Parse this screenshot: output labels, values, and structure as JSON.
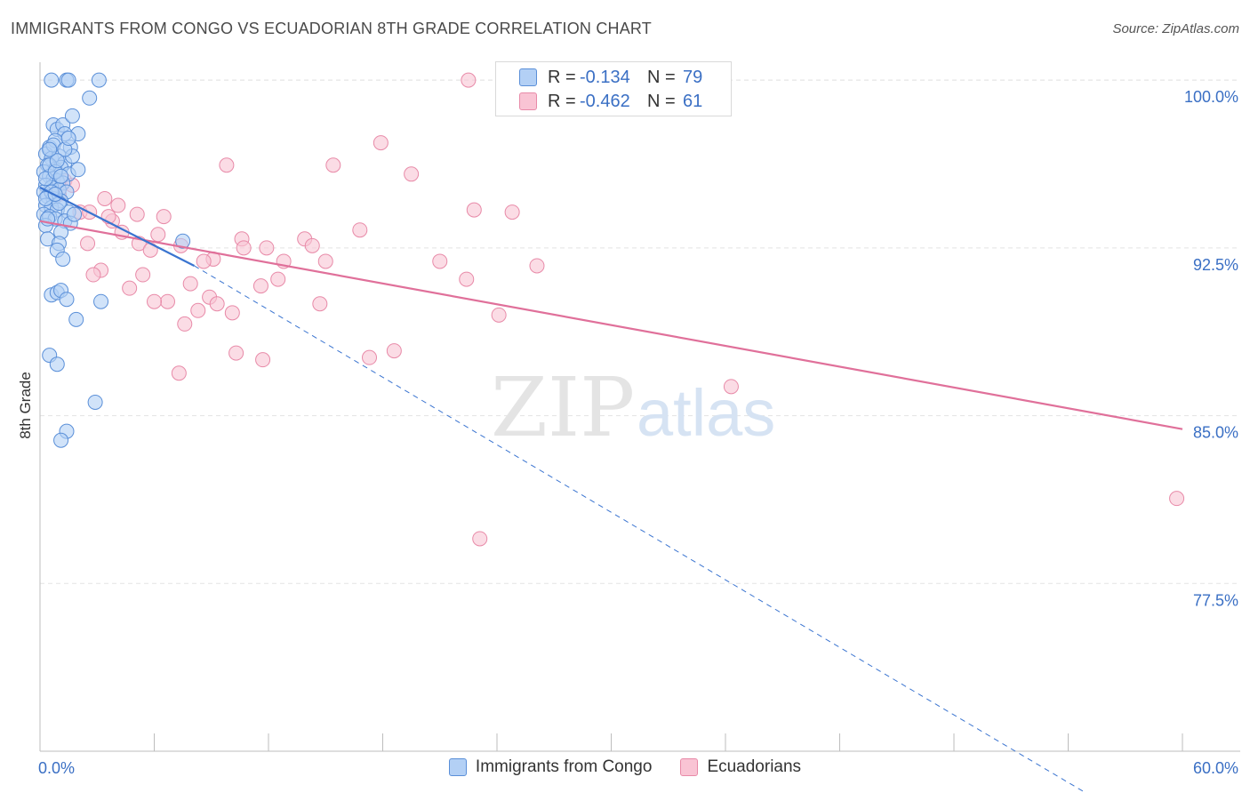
{
  "header": {
    "title": "IMMIGRANTS FROM CONGO VS ECUADORIAN 8TH GRADE CORRELATION CHART",
    "source": "Source: ZipAtlas.com"
  },
  "legend_stats": [
    {
      "r_label": "R =",
      "r_value": "-0.134",
      "n_label": "N =",
      "n_value": "79"
    },
    {
      "r_label": "R =",
      "r_value": "-0.462",
      "n_label": "N =",
      "n_value": "61"
    }
  ],
  "watermark": {
    "zip": "ZIP",
    "atlas": "atlas"
  },
  "colors": {
    "congo_fill": "#b3d0f5",
    "congo_stroke": "#5a8fd8",
    "congo_line": "#3a74d0",
    "ecu_fill": "#f9c4d4",
    "ecu_stroke": "#e88aa8",
    "ecu_line": "#e0709a",
    "tick_label": "#3a6fc4",
    "grid": "#e3e3e3"
  },
  "chart_data": {
    "type": "scatter",
    "title": "IMMIGRANTS FROM CONGO VS ECUADORIAN 8TH GRADE CORRELATION CHART",
    "ylabel": "8th Grade",
    "xlabel": "",
    "xlim": [
      0,
      60
    ],
    "ylim": [
      70.0,
      100.8
    ],
    "x_tick_labels": [
      "0.0%",
      "60.0%"
    ],
    "y_ticks": [
      100.0,
      92.5,
      85.0,
      77.5
    ],
    "y_tick_labels": [
      "100.0%",
      "92.5%",
      "85.0%",
      "77.5%"
    ],
    "grid": true,
    "legend_position": "bottom",
    "series": [
      {
        "name": "Immigrants from Congo",
        "r": -0.134,
        "n": 79,
        "trend": {
          "x0": 0.0,
          "y0": 95.2,
          "x1": 8.1,
          "y1": 91.7,
          "dash_to_x": 55.0,
          "dash_to_y": 68.1
        },
        "points": [
          [
            0.6,
            100.0
          ],
          [
            1.4,
            100.0
          ],
          [
            1.5,
            100.0
          ],
          [
            3.1,
            100.0
          ],
          [
            2.6,
            99.2
          ],
          [
            0.7,
            98.0
          ],
          [
            0.9,
            97.8
          ],
          [
            1.2,
            98.0
          ],
          [
            1.3,
            97.6
          ],
          [
            1.7,
            98.4
          ],
          [
            0.5,
            97.0
          ],
          [
            0.8,
            97.3
          ],
          [
            1.6,
            97.0
          ],
          [
            2.0,
            97.6
          ],
          [
            0.3,
            96.7
          ],
          [
            0.6,
            96.5
          ],
          [
            1.0,
            96.6
          ],
          [
            1.3,
            96.3
          ],
          [
            1.7,
            96.6
          ],
          [
            0.4,
            96.2
          ],
          [
            0.8,
            96.0
          ],
          [
            1.1,
            96.1
          ],
          [
            1.5,
            95.8
          ],
          [
            2.0,
            96.0
          ],
          [
            0.2,
            95.9
          ],
          [
            0.5,
            95.7
          ],
          [
            0.7,
            95.6
          ],
          [
            0.9,
            95.5
          ],
          [
            1.2,
            95.4
          ],
          [
            0.3,
            95.3
          ],
          [
            0.6,
            95.2
          ],
          [
            1.0,
            95.1
          ],
          [
            1.4,
            95.0
          ],
          [
            0.2,
            95.0
          ],
          [
            0.4,
            94.8
          ],
          [
            0.7,
            94.7
          ],
          [
            1.1,
            94.6
          ],
          [
            0.3,
            94.4
          ],
          [
            0.6,
            94.3
          ],
          [
            0.9,
            94.2
          ],
          [
            1.5,
            94.1
          ],
          [
            0.2,
            94.0
          ],
          [
            0.5,
            93.9
          ],
          [
            0.8,
            93.8
          ],
          [
            1.3,
            93.7
          ],
          [
            1.6,
            93.6
          ],
          [
            0.3,
            93.5
          ],
          [
            1.1,
            93.2
          ],
          [
            0.4,
            92.9
          ],
          [
            1.0,
            92.7
          ],
          [
            0.9,
            92.4
          ],
          [
            1.2,
            92.0
          ],
          [
            7.5,
            92.8
          ],
          [
            0.6,
            90.4
          ],
          [
            0.9,
            90.5
          ],
          [
            1.1,
            90.6
          ],
          [
            1.4,
            90.2
          ],
          [
            3.2,
            90.1
          ],
          [
            1.9,
            89.3
          ],
          [
            0.5,
            87.7
          ],
          [
            0.9,
            87.3
          ],
          [
            2.9,
            85.6
          ],
          [
            1.4,
            84.3
          ],
          [
            1.1,
            83.9
          ],
          [
            0.3,
            95.6
          ],
          [
            0.5,
            96.2
          ],
          [
            0.8,
            95.9
          ],
          [
            1.0,
            94.5
          ],
          [
            0.4,
            93.8
          ],
          [
            0.7,
            97.1
          ],
          [
            1.3,
            96.9
          ],
          [
            0.6,
            95.0
          ],
          [
            1.8,
            94.0
          ],
          [
            0.9,
            96.4
          ],
          [
            1.5,
            97.4
          ],
          [
            0.3,
            94.7
          ],
          [
            1.1,
            95.7
          ],
          [
            0.8,
            94.9
          ],
          [
            0.5,
            96.9
          ]
        ]
      },
      {
        "name": "Ecuadorians",
        "r": -0.462,
        "n": 61,
        "trend": {
          "x0": 0.0,
          "y0": 93.7,
          "x1": 60.0,
          "y1": 84.4
        },
        "points": [
          [
            22.5,
            100.0
          ],
          [
            17.9,
            97.2
          ],
          [
            19.5,
            95.8
          ],
          [
            9.8,
            96.2
          ],
          [
            15.4,
            96.2
          ],
          [
            1.3,
            95.5
          ],
          [
            1.7,
            95.3
          ],
          [
            1.0,
            94.9
          ],
          [
            3.4,
            94.7
          ],
          [
            4.1,
            94.4
          ],
          [
            2.1,
            94.1
          ],
          [
            2.6,
            94.1
          ],
          [
            5.1,
            94.0
          ],
          [
            6.5,
            93.9
          ],
          [
            3.8,
            93.7
          ],
          [
            22.8,
            94.2
          ],
          [
            24.8,
            94.1
          ],
          [
            4.3,
            93.2
          ],
          [
            6.2,
            93.1
          ],
          [
            13.9,
            92.9
          ],
          [
            10.6,
            92.9
          ],
          [
            14.3,
            92.6
          ],
          [
            2.5,
            92.7
          ],
          [
            5.2,
            92.7
          ],
          [
            7.4,
            92.6
          ],
          [
            10.7,
            92.5
          ],
          [
            11.9,
            92.5
          ],
          [
            5.8,
            92.4
          ],
          [
            9.1,
            92.0
          ],
          [
            8.6,
            91.9
          ],
          [
            12.8,
            91.9
          ],
          [
            15.0,
            91.9
          ],
          [
            21.0,
            91.9
          ],
          [
            26.1,
            91.7
          ],
          [
            3.2,
            91.5
          ],
          [
            2.8,
            91.3
          ],
          [
            5.4,
            91.3
          ],
          [
            12.5,
            91.1
          ],
          [
            22.4,
            91.1
          ],
          [
            7.9,
            90.9
          ],
          [
            11.6,
            90.8
          ],
          [
            4.7,
            90.7
          ],
          [
            8.9,
            90.3
          ],
          [
            6.7,
            90.1
          ],
          [
            9.3,
            90.0
          ],
          [
            14.7,
            90.0
          ],
          [
            8.3,
            89.7
          ],
          [
            10.1,
            89.6
          ],
          [
            24.1,
            89.5
          ],
          [
            7.6,
            89.1
          ],
          [
            10.3,
            87.8
          ],
          [
            18.6,
            87.9
          ],
          [
            11.7,
            87.5
          ],
          [
            17.3,
            87.6
          ],
          [
            7.3,
            86.9
          ],
          [
            36.3,
            86.3
          ],
          [
            59.7,
            81.3
          ],
          [
            23.1,
            79.5
          ],
          [
            6.0,
            90.1
          ],
          [
            3.6,
            93.9
          ],
          [
            16.8,
            93.3
          ]
        ]
      }
    ]
  },
  "bottom_legend": [
    "Immigrants from Congo",
    "Ecuadorians"
  ]
}
